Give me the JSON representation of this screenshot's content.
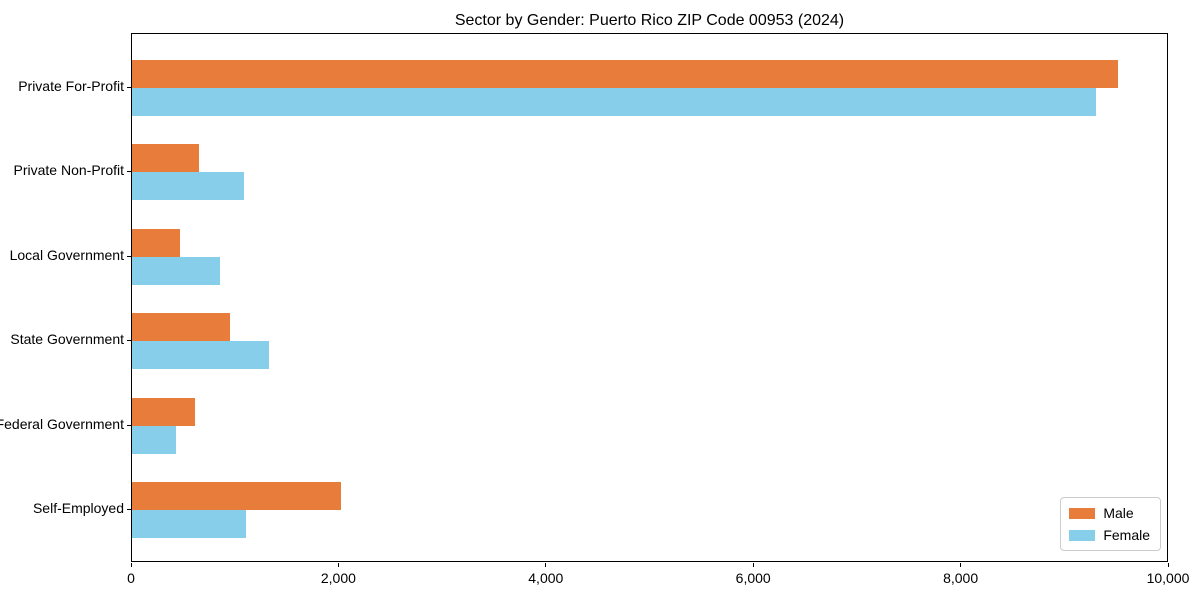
{
  "title": "Sector by Gender: Puerto Rico ZIP Code 00953 (2024)",
  "colors": {
    "male": "#e87d3b",
    "female": "#87ceeb",
    "axis": "#000000",
    "legend_border": "#cccccc",
    "background": "#ffffff"
  },
  "chart_data": {
    "type": "bar",
    "orientation": "horizontal",
    "title": "Sector by Gender: Puerto Rico ZIP Code 00953 (2024)",
    "xlabel": "",
    "ylabel": "",
    "categories": [
      "Private For-Profit",
      "Private Non-Profit",
      "Local Government",
      "State Government",
      "Federal Government",
      "Self-Employed"
    ],
    "series": [
      {
        "name": "Male",
        "color": "#e87d3b",
        "values": [
          9530,
          645,
          465,
          945,
          605,
          2015
        ]
      },
      {
        "name": "Female",
        "color": "#87ceeb",
        "values": [
          9310,
          1080,
          850,
          1320,
          425,
          1100
        ]
      }
    ],
    "xlim": [
      0,
      10000
    ],
    "xticks": [
      0,
      2000,
      4000,
      6000,
      8000,
      10000
    ],
    "xtick_labels": [
      "0",
      "2,000",
      "4,000",
      "6,000",
      "8,000",
      "10,000"
    ],
    "grid": false,
    "legend": {
      "position": "lower-right",
      "entries": [
        "Male",
        "Female"
      ]
    }
  }
}
